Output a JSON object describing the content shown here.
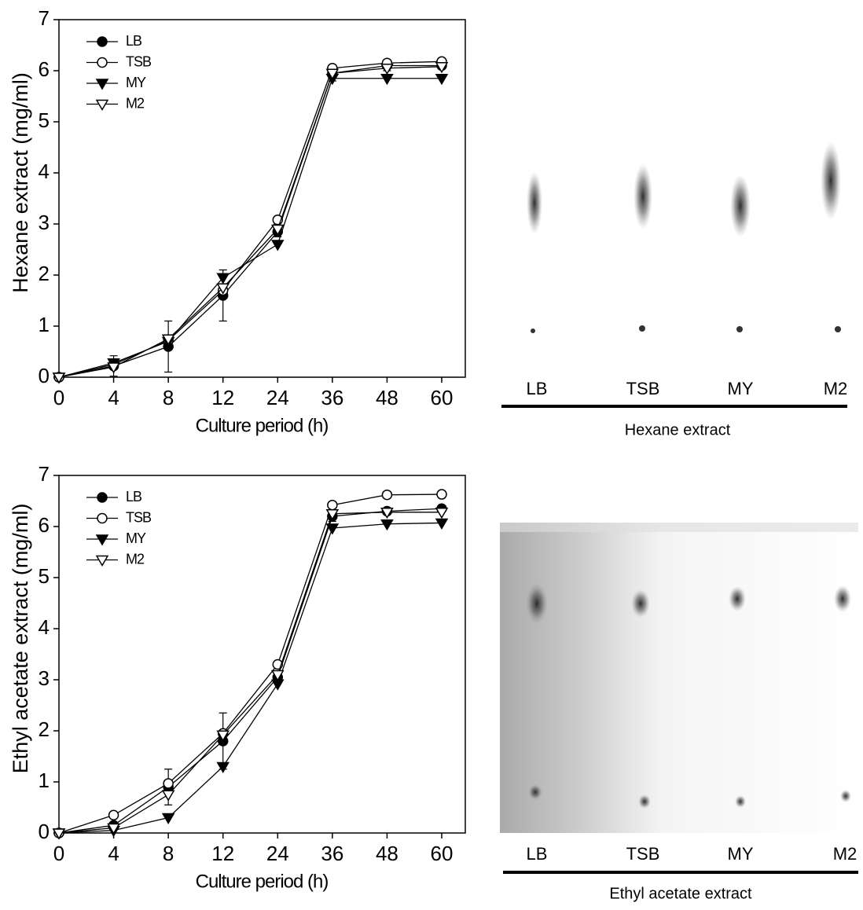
{
  "chart_data": [
    {
      "type": "line",
      "xlabel": "Culture period (h)",
      "ylabel": "Hexane extract (mg/ml)",
      "categories": [
        "0",
        "4",
        "8",
        "12",
        "24",
        "36",
        "48",
        "60"
      ],
      "ylim": [
        0,
        7
      ],
      "yticks": [
        0,
        1,
        2,
        3,
        4,
        5,
        6,
        7
      ],
      "legend": "upper-left",
      "series": [
        {
          "name": "LB",
          "color": "#000000",
          "marker": "circle",
          "filled": true,
          "values": [
            0,
            0.22,
            0.6,
            1.6,
            2.85,
            5.95,
            6.1,
            6.1
          ],
          "errors": [
            0,
            0.2,
            0.5,
            0.5,
            0.1,
            0.15,
            0.1,
            0.05
          ]
        },
        {
          "name": "TSB",
          "color": "#000000",
          "marker": "circle",
          "filled": false,
          "values": [
            0,
            0.25,
            0.72,
            1.7,
            3.08,
            6.05,
            6.15,
            6.18
          ]
        },
        {
          "name": "MY",
          "color": "#000000",
          "marker": "triangle-down",
          "filled": true,
          "values": [
            0,
            0.28,
            0.7,
            1.95,
            2.6,
            5.85,
            5.85,
            5.85
          ]
        },
        {
          "name": "M2",
          "color": "#000000",
          "marker": "triangle-down",
          "filled": false,
          "values": [
            0,
            0.2,
            0.75,
            1.75,
            2.9,
            5.95,
            6.05,
            6.08
          ]
        }
      ]
    },
    {
      "type": "line",
      "xlabel": "Culture period (h)",
      "ylabel": "Ethyl acetate extract (mg/ml)",
      "categories": [
        "0",
        "4",
        "8",
        "12",
        "24",
        "36",
        "48",
        "60"
      ],
      "ylim": [
        0,
        7
      ],
      "yticks": [
        0,
        1,
        2,
        3,
        4,
        5,
        6,
        7
      ],
      "legend": "upper-left",
      "series": [
        {
          "name": "LB",
          "color": "#000000",
          "marker": "circle",
          "filled": true,
          "values": [
            0,
            0.15,
            0.9,
            1.8,
            3.05,
            6.2,
            6.3,
            6.35
          ],
          "errors": [
            0,
            0.05,
            0.35,
            0.55,
            0.1,
            0.1,
            0.05,
            0.05
          ]
        },
        {
          "name": "TSB",
          "color": "#000000",
          "marker": "circle",
          "filled": false,
          "values": [
            0,
            0.35,
            0.97,
            1.95,
            3.3,
            6.42,
            6.62,
            6.63
          ]
        },
        {
          "name": "MY",
          "color": "#000000",
          "marker": "triangle-down",
          "filled": true,
          "values": [
            0,
            0.05,
            0.3,
            1.3,
            2.92,
            5.97,
            6.05,
            6.07
          ]
        },
        {
          "name": "M2",
          "color": "#000000",
          "marker": "triangle-down",
          "filled": false,
          "values": [
            0,
            0.1,
            0.75,
            1.92,
            3.1,
            6.25,
            6.28,
            6.28
          ]
        }
      ]
    }
  ],
  "tlc_panels": [
    {
      "lanes": [
        "LB",
        "TSB",
        "MY",
        "M2"
      ],
      "caption": "Hexane extract"
    },
    {
      "lanes": [
        "LB",
        "TSB",
        "MY",
        "M2"
      ],
      "caption": "Ethyl acetate extract"
    }
  ]
}
